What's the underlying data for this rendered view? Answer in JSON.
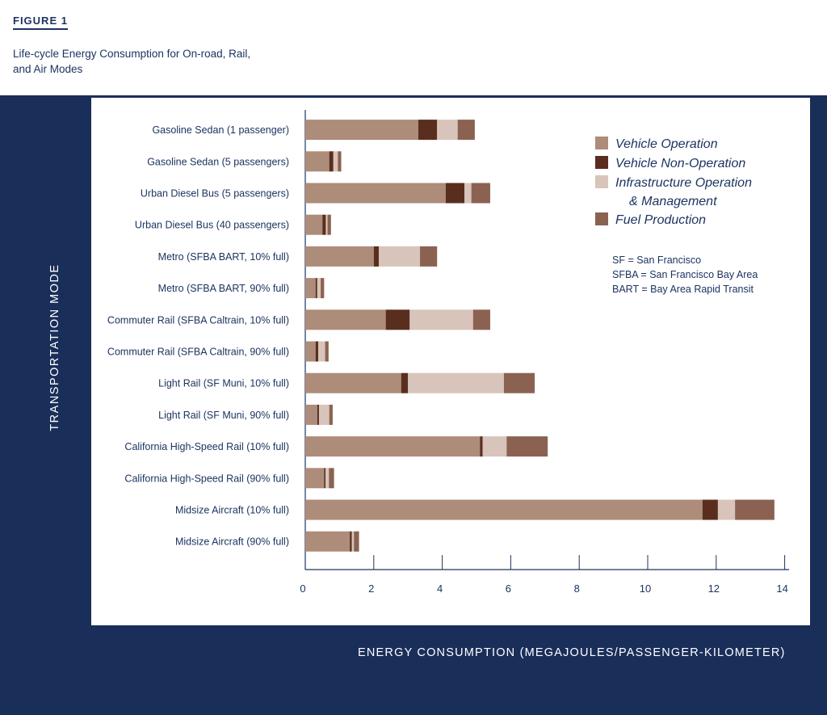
{
  "figure": {
    "label": "FIGURE 1",
    "title": "Life-cycle Energy Consumption for On-road, Rail, and Air Modes"
  },
  "y_title": "TRANSPORTATION MODE",
  "x_title": "ENERGY CONSUMPTION (MEGAJOULES/PASSENGER-KILOMETER)",
  "notes": [
    "SF = San Francisco",
    "SFBA = San Francisco Bay Area",
    "BART = Bay Area Rapid Transit"
  ],
  "chart_data": {
    "type": "bar",
    "orientation": "horizontal",
    "stacked": true,
    "categories": [
      "Gasoline Sedan (1 passenger)",
      "Gasoline Sedan (5 passengers)",
      "Urban Diesel Bus (5 passengers)",
      "Urban Diesel Bus (40 passengers)",
      "Metro (SFBA BART, 10% full)",
      "Metro (SFBA BART, 90% full)",
      "Commuter Rail (SFBA Caltrain, 10% full)",
      "Commuter Rail (SFBA Caltrain, 90% full)",
      "Light Rail (SF Muni, 10% full)",
      "Light Rail (SF Muni, 90% full)",
      "California High-Speed Rail (10% full)",
      "California High-Speed Rail (90% full)",
      "Midsize Aircraft (10% full)",
      "Midsize Aircraft (90% full)"
    ],
    "series": [
      {
        "name": "Vehicle Operation",
        "color": "#ad8c7a",
        "values": [
          3.3,
          0.7,
          4.1,
          0.5,
          2.0,
          0.3,
          2.35,
          0.3,
          2.8,
          0.35,
          5.1,
          0.55,
          11.6,
          1.3
        ]
      },
      {
        "name": "Vehicle Non-Operation",
        "color": "#5a2e1e",
        "values": [
          0.55,
          0.12,
          0.55,
          0.1,
          0.15,
          0.05,
          0.7,
          0.08,
          0.2,
          0.05,
          0.08,
          0.04,
          0.45,
          0.06
        ]
      },
      {
        "name": "Infrastructure Operation & Management",
        "color": "#d8c4ba",
        "values": [
          0.6,
          0.13,
          0.2,
          0.05,
          1.2,
          0.1,
          1.85,
          0.2,
          2.8,
          0.3,
          0.7,
          0.1,
          0.5,
          0.06
        ]
      },
      {
        "name": "Fuel Production",
        "color": "#8b6251",
        "values": [
          0.5,
          0.1,
          0.55,
          0.1,
          0.5,
          0.1,
          0.5,
          0.1,
          0.9,
          0.1,
          1.2,
          0.15,
          1.15,
          0.15
        ]
      }
    ],
    "x_ticks": [
      0,
      2,
      4,
      6,
      8,
      10,
      12,
      14
    ],
    "xlim": [
      0,
      14
    ],
    "legend_position": "top-right",
    "grid": false
  }
}
